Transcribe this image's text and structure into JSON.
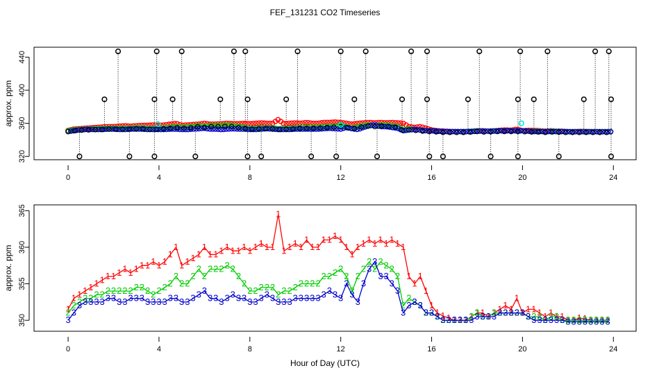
{
  "title": "FEF_131231  CO2 Timeseries",
  "xlabel": "Hour of Day (UTC)",
  "colors": {
    "series1": "#ff0000",
    "series2": "#00cc00",
    "series3": "#0000cc",
    "black": "#000000",
    "cyan": "#00e5e5"
  },
  "chart_data": [
    {
      "type": "scatter",
      "panel": "top",
      "ylabel": "approx. ppm",
      "xlim": [
        -1.5,
        25
      ],
      "ylim": [
        316,
        452
      ],
      "xticks": [
        0,
        4,
        8,
        12,
        16,
        20,
        24
      ],
      "yticks": [
        320,
        360,
        400,
        440
      ],
      "series": [
        {
          "name": "1",
          "color": "red",
          "values_desc": "baseline near 355 ppm hours 0-12, peak ~362 at hour 13, ~351 after hour 16"
        },
        {
          "name": "2",
          "color": "green",
          "values_desc": "baseline near 354 ppm"
        },
        {
          "name": "3",
          "color": "blue",
          "values_desc": "baseline near 353 ppm"
        }
      ],
      "high_spike_hours": [
        2.2,
        3.9,
        5.0,
        7.3,
        7.8,
        10.1,
        12.0,
        13.1,
        15.1,
        15.8,
        18.1,
        19.9,
        21.1,
        23.2,
        23.8
      ],
      "high_spike_value": 447,
      "mid_spike_hours": [
        1.6,
        3.8,
        4.6,
        6.7,
        7.9,
        9.6,
        12.6,
        14.7,
        15.8,
        17.6,
        19.8,
        20.5,
        22.7,
        23.9
      ],
      "mid_spike_value": 389,
      "low_spike_hours": [
        0.5,
        2.7,
        3.8,
        5.6,
        7.9,
        8.5,
        10.7,
        11.8,
        13.6,
        15.9,
        16.5,
        18.6,
        19.8,
        21.6,
        23.9
      ],
      "low_spike_value": 320,
      "cyan_markers": [
        {
          "x": 3.95,
          "y": 359
        },
        {
          "x": 12.0,
          "y": 358
        },
        {
          "x": 19.95,
          "y": 360
        }
      ]
    },
    {
      "type": "line",
      "panel": "bottom",
      "ylabel": "approx. ppm",
      "xlim": [
        -1.5,
        25
      ],
      "ylim": [
        348.5,
        365.8
      ],
      "xticks": [
        0,
        4,
        8,
        12,
        16,
        20,
        24
      ],
      "yticks": [
        350,
        355,
        360,
        365
      ],
      "x": [
        0.0,
        0.25,
        0.5,
        0.75,
        1.0,
        1.25,
        1.5,
        1.75,
        2.0,
        2.25,
        2.5,
        2.75,
        3.0,
        3.25,
        3.5,
        3.75,
        4.0,
        4.25,
        4.5,
        4.75,
        5.0,
        5.25,
        5.5,
        5.75,
        6.0,
        6.25,
        6.5,
        6.75,
        7.0,
        7.25,
        7.5,
        7.75,
        8.0,
        8.25,
        8.5,
        8.75,
        9.0,
        9.25,
        9.5,
        9.75,
        10.0,
        10.25,
        10.5,
        10.75,
        11.0,
        11.25,
        11.5,
        11.75,
        12.0,
        12.25,
        12.5,
        12.75,
        13.0,
        13.25,
        13.5,
        13.75,
        14.0,
        14.25,
        14.5,
        14.75,
        15.0,
        15.25,
        15.5,
        15.75,
        16.0,
        16.25,
        16.5,
        16.75,
        17.0,
        17.25,
        17.5,
        17.75,
        18.0,
        18.25,
        18.5,
        18.75,
        19.0,
        19.25,
        19.5,
        19.75,
        20.0,
        20.25,
        20.5,
        20.75,
        21.0,
        21.25,
        21.5,
        21.75,
        22.0,
        22.25,
        22.5,
        22.75,
        23.0,
        23.25,
        23.5,
        23.75
      ],
      "series": [
        {
          "name": "1",
          "color": "red",
          "values": [
            351.5,
            353,
            353.5,
            354,
            354.5,
            355,
            355.5,
            356,
            356,
            356.5,
            357,
            356.5,
            357,
            357.5,
            357.5,
            358,
            357.5,
            358,
            359,
            360,
            357.5,
            358,
            358.5,
            359,
            360,
            359,
            359,
            359.5,
            360,
            359.5,
            359.5,
            360,
            359.5,
            360,
            360.5,
            360,
            360,
            364.5,
            359.5,
            360,
            360.5,
            360,
            361,
            360,
            360,
            361,
            361,
            361.5,
            361,
            360,
            359,
            360,
            360.5,
            361,
            360.5,
            361,
            360.5,
            361,
            360.5,
            360,
            356,
            355,
            356,
            354,
            352,
            351,
            350.6,
            350.3,
            350,
            350,
            350,
            350.5,
            351,
            351,
            350.5,
            351,
            351.5,
            352,
            351.5,
            353,
            351,
            351.5,
            351.5,
            351,
            350.5,
            351,
            350.5,
            350.5,
            350,
            350,
            350.3,
            350.2,
            350,
            350,
            350,
            350
          ]
        },
        {
          "name": "2",
          "color": "green",
          "values": [
            351,
            352,
            352.5,
            353,
            353,
            353.5,
            353.5,
            354,
            354,
            354,
            354,
            354,
            354.5,
            354.5,
            354,
            353.5,
            354,
            354.5,
            355,
            356,
            355,
            355,
            356,
            357,
            356,
            357,
            357,
            357,
            357.5,
            357,
            356,
            355,
            354,
            354,
            354.5,
            354.5,
            354.5,
            353.5,
            354,
            354,
            354.5,
            355,
            355,
            355,
            355,
            356,
            356,
            356.5,
            357,
            356,
            354,
            356,
            357,
            358,
            357,
            358,
            357.5,
            357,
            356,
            352,
            353,
            352.5,
            352,
            351,
            351,
            350.5,
            350,
            350,
            350,
            350,
            350,
            350.5,
            351,
            350.5,
            350.5,
            351,
            351,
            351,
            351,
            351,
            351,
            350.5,
            350.5,
            350.5,
            350,
            350.5,
            350.5,
            350,
            350,
            350,
            350,
            350,
            350,
            350,
            350,
            350
          ]
        },
        {
          "name": "3",
          "color": "blue",
          "values": [
            350,
            351,
            352,
            352.5,
            352.5,
            352.5,
            352.5,
            353,
            353,
            352.5,
            352.5,
            353,
            353,
            353,
            352.5,
            352.5,
            352.5,
            352.5,
            353,
            353,
            352.5,
            352.5,
            353,
            353.5,
            354,
            353,
            353,
            352.5,
            353,
            353.5,
            353,
            353,
            352.5,
            352.5,
            353,
            353.5,
            353,
            352.5,
            352.5,
            352.5,
            353,
            353,
            353,
            353,
            353,
            353.5,
            354,
            353.5,
            353,
            355,
            353.5,
            352.5,
            355,
            357,
            358,
            356,
            356,
            355,
            354,
            351,
            352,
            352.5,
            352,
            351,
            351,
            350.5,
            350,
            350,
            350,
            350,
            350,
            350,
            350.5,
            350.5,
            350.5,
            350.5,
            351,
            351,
            351,
            351,
            351,
            350.5,
            350,
            350,
            350,
            350,
            350,
            350,
            349.8,
            349.8,
            349.8,
            349.8,
            349.8,
            349.8,
            349.8,
            349.8
          ]
        }
      ]
    }
  ]
}
